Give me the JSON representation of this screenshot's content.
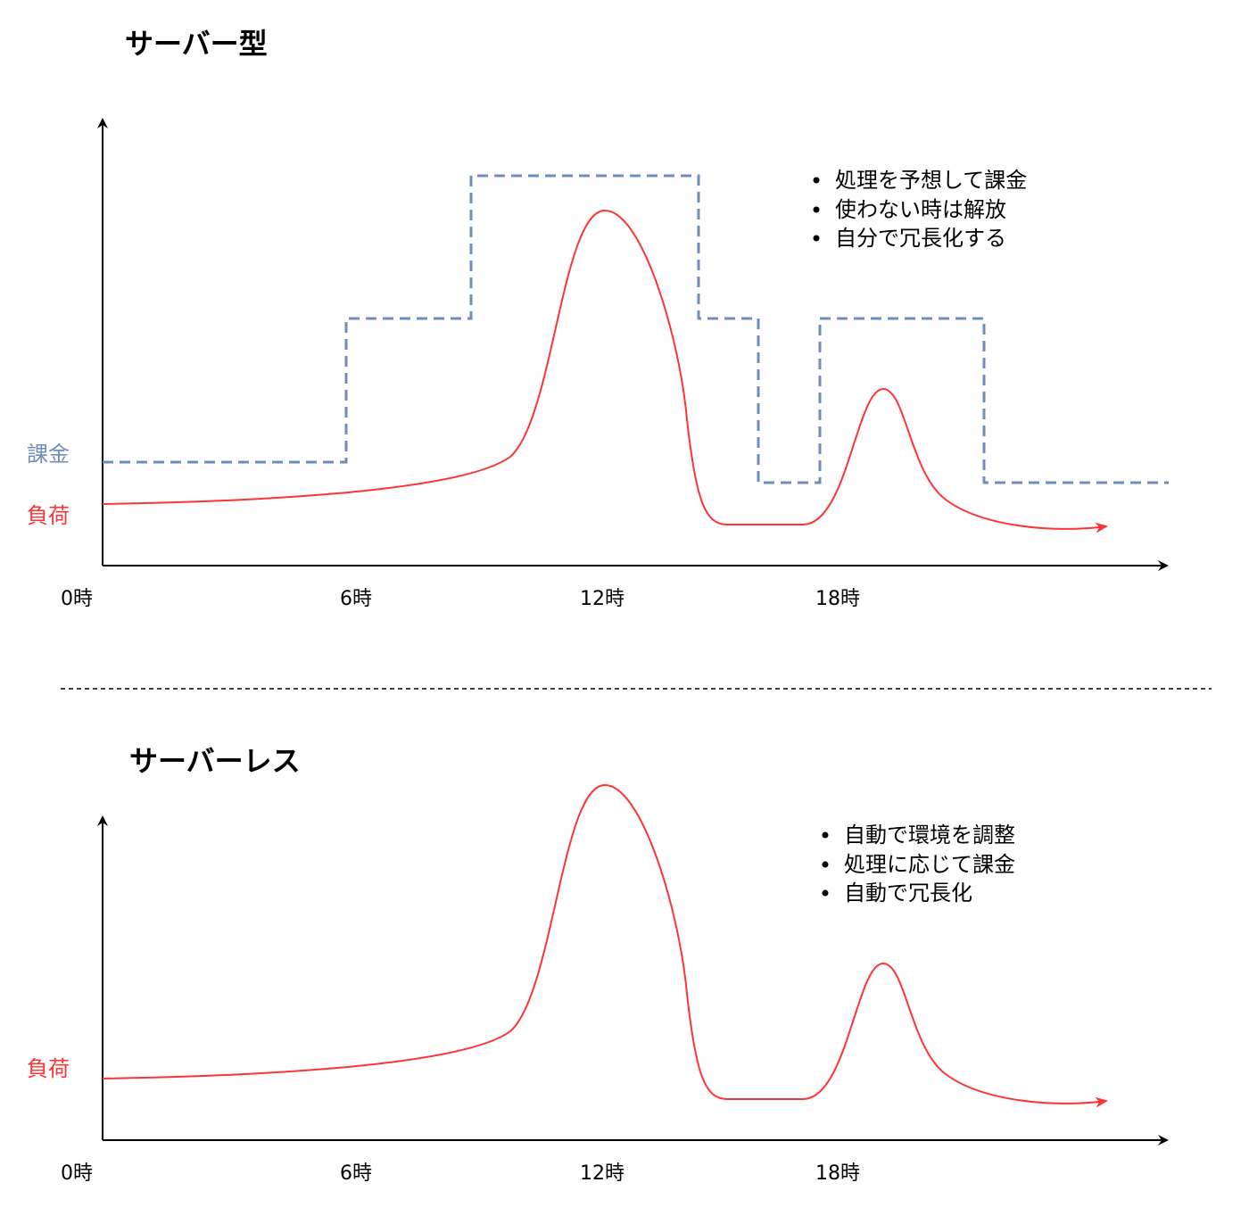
{
  "colors": {
    "load": "#FF3333",
    "billing": "#6C8EBF",
    "axis": "#000000"
  },
  "server": {
    "title": "サーバー型",
    "billing_label": "課金",
    "load_label": "負荷",
    "ticks": [
      "0時",
      "6時",
      "12時",
      "18時"
    ],
    "bullets": [
      "処理を予想して課金",
      "使わない時は解放",
      "自分で冗長化する"
    ]
  },
  "serverless": {
    "title": "サーバーレス",
    "load_label": "負荷",
    "ticks": [
      "0時",
      "6時",
      "12時",
      "18時"
    ],
    "bullets": [
      "自動で環境を調整",
      "処理に応じて課金",
      "自動で冗長化"
    ]
  }
}
